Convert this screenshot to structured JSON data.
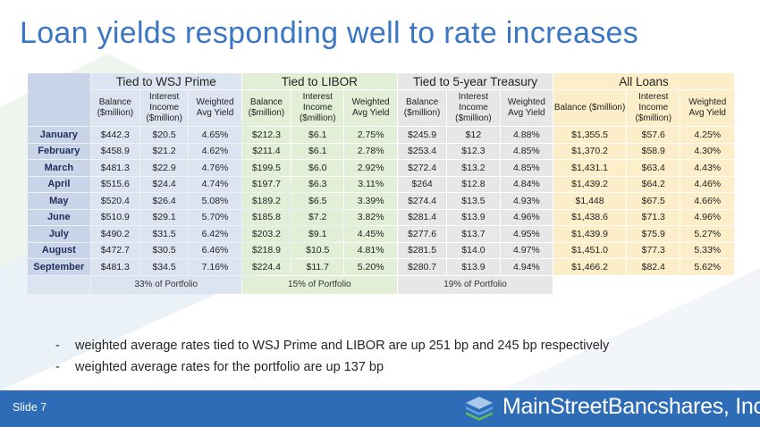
{
  "title": "Loan yields responding well to rate increases",
  "colors": {
    "title": "#3a76c4",
    "footer": "#2e6cb7",
    "wsj": "#dde4f1",
    "libor": "#e2eed6",
    "treasury": "#e7e7e7",
    "all": "#fbeec9",
    "row_label": "#c9d4e8"
  },
  "table": {
    "groups": [
      "Tied to WSJ Prime",
      "Tied to LIBOR",
      "Tied to 5-year Treasury",
      "All Loans"
    ],
    "subheaders": [
      "Balance ($million)",
      "Interest Income ($million)",
      "Weighted Avg Yield"
    ],
    "rows": [
      {
        "month": "January",
        "cells": [
          "$442.3",
          "$20.5",
          "4.65%",
          "$212.3",
          "$6.1",
          "2.75%",
          "$245.9",
          "$12",
          "4.88%",
          "$1,355.5",
          "$57.6",
          "4.25%"
        ]
      },
      {
        "month": "February",
        "cells": [
          "$458.9",
          "$21.2",
          "4.62%",
          "$211.4",
          "$6.1",
          "2.78%",
          "$253.4",
          "$12.3",
          "4.85%",
          "$1,370.2",
          "$58.9",
          "4.30%"
        ]
      },
      {
        "month": "March",
        "cells": [
          "$481.3",
          "$22.9",
          "4.76%",
          "$199.5",
          "$6.0",
          "2.92%",
          "$272.4",
          "$13.2",
          "4.85%",
          "$1,431.1",
          "$63.4",
          "4.43%"
        ]
      },
      {
        "month": "April",
        "cells": [
          "$515.6",
          "$24.4",
          "4.74%",
          "$197.7",
          "$6.3",
          "3.11%",
          "$264",
          "$12.8",
          "4.84%",
          "$1,439.2",
          "$64.2",
          "4.46%"
        ]
      },
      {
        "month": "May",
        "cells": [
          "$520.4",
          "$26.4",
          "5.08%",
          "$189.2",
          "$6.5",
          "3.39%",
          "$274.4",
          "$13.5",
          "4.93%",
          "$1,448",
          "$67.5",
          "4.66%"
        ]
      },
      {
        "month": "June",
        "cells": [
          "$510.9",
          "$29.1",
          "5.70%",
          "$185.8",
          "$7.2",
          "3.82%",
          "$281.4",
          "$13.9",
          "4.96%",
          "$1,438.6",
          "$71.3",
          "4.96%"
        ]
      },
      {
        "month": "July",
        "cells": [
          "$490.2",
          "$31.5",
          "6.42%",
          "$203.2",
          "$9.1",
          "4.45%",
          "$277.6",
          "$13.7",
          "4.95%",
          "$1,439.9",
          "$75.9",
          "5.27%"
        ]
      },
      {
        "month": "August",
        "cells": [
          "$472.7",
          "$30.5",
          "6.46%",
          "$218.9",
          "$10.5",
          "4.81%",
          "$281.5",
          "$14.0",
          "4.97%",
          "$1,451.0",
          "$77.3",
          "5.33%"
        ]
      },
      {
        "month": "September",
        "cells": [
          "$481.3",
          "$34.5",
          "7.16%",
          "$224.4",
          "$11.7",
          "5.20%",
          "$280.7",
          "$13.9",
          "4.94%",
          "$1,466.2",
          "$82.4",
          "5.62%"
        ]
      }
    ],
    "footer": [
      "33% of Portfolio",
      "15% of Portfolio",
      "19% of Portfolio"
    ]
  },
  "bullets": [
    {
      "marker": "-",
      "text": "weighted average rates tied to WSJ Prime and LIBOR are up 251 bp and 245 bp respectively"
    },
    {
      "marker": "-",
      "text": "weighted average rates for the portfolio are up 137 bp"
    }
  ],
  "footer": {
    "slide_label": "Slide 7",
    "logo_text": "MainStreetBancshares, Inc.",
    "logo_icon": "stacked-layers-icon"
  }
}
